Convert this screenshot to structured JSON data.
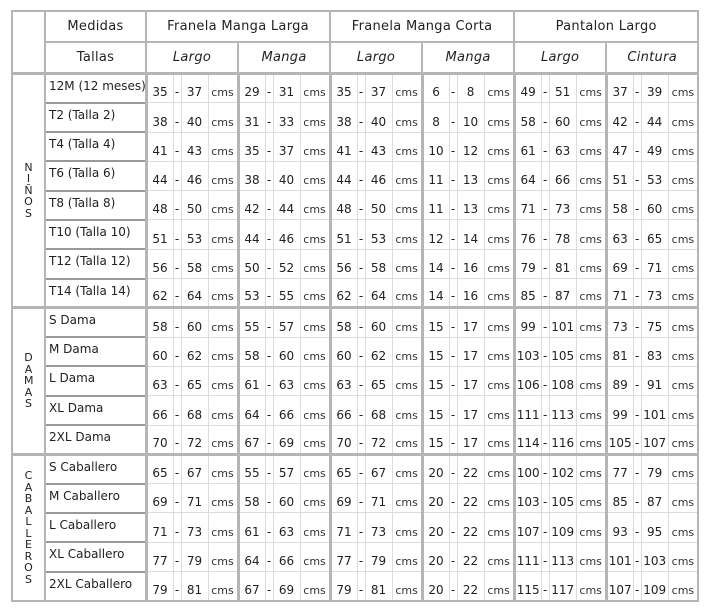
{
  "header": {
    "medidas": "Medidas",
    "tallas": "Tallas",
    "garments": [
      {
        "label": "Franela Manga Larga",
        "subs": [
          "Largo",
          "Manga"
        ]
      },
      {
        "label": "Franela Manga Corta",
        "subs": [
          "Largo",
          "Manga"
        ]
      },
      {
        "label": "Pantalon Largo",
        "subs": [
          "Largo",
          "Cintura"
        ]
      }
    ]
  },
  "unit": "cms",
  "separator": "-",
  "colors": {
    "border_thick": "#b5b5b5",
    "border_thin": "#dcdcdc"
  },
  "groups": [
    {
      "label": "NIÑOS",
      "rows": [
        {
          "size": "12M (12 meses)",
          "values": [
            [
              35,
              37
            ],
            [
              29,
              31
            ],
            [
              35,
              37
            ],
            [
              6,
              8
            ],
            [
              49,
              51
            ],
            [
              37,
              39
            ]
          ]
        },
        {
          "size": "T2 (Talla 2)",
          "values": [
            [
              38,
              40
            ],
            [
              31,
              33
            ],
            [
              38,
              40
            ],
            [
              8,
              10
            ],
            [
              58,
              60
            ],
            [
              42,
              44
            ]
          ]
        },
        {
          "size": "T4 (Talla 4)",
          "values": [
            [
              41,
              43
            ],
            [
              35,
              37
            ],
            [
              41,
              43
            ],
            [
              10,
              12
            ],
            [
              61,
              63
            ],
            [
              47,
              49
            ]
          ]
        },
        {
          "size": "T6 (Talla 6)",
          "values": [
            [
              44,
              46
            ],
            [
              38,
              40
            ],
            [
              44,
              46
            ],
            [
              11,
              13
            ],
            [
              64,
              66
            ],
            [
              51,
              53
            ]
          ]
        },
        {
          "size": "T8  (Talla 8)",
          "values": [
            [
              48,
              50
            ],
            [
              42,
              44
            ],
            [
              48,
              50
            ],
            [
              11,
              13
            ],
            [
              71,
              73
            ],
            [
              58,
              60
            ]
          ]
        },
        {
          "size": "T10 (Talla 10)",
          "values": [
            [
              51,
              53
            ],
            [
              44,
              46
            ],
            [
              51,
              53
            ],
            [
              12,
              14
            ],
            [
              76,
              78
            ],
            [
              63,
              65
            ]
          ]
        },
        {
          "size": "T12 (Talla 12)",
          "values": [
            [
              56,
              58
            ],
            [
              50,
              52
            ],
            [
              56,
              58
            ],
            [
              14,
              16
            ],
            [
              79,
              81
            ],
            [
              69,
              71
            ]
          ]
        },
        {
          "size": "T14 (Talla 14)",
          "values": [
            [
              62,
              64
            ],
            [
              53,
              55
            ],
            [
              62,
              64
            ],
            [
              14,
              16
            ],
            [
              85,
              87
            ],
            [
              71,
              73
            ]
          ]
        }
      ]
    },
    {
      "label": "DAMAS",
      "rows": [
        {
          "size": "S Dama",
          "values": [
            [
              58,
              60
            ],
            [
              55,
              57
            ],
            [
              58,
              60
            ],
            [
              15,
              17
            ],
            [
              99,
              101
            ],
            [
              73,
              75
            ]
          ]
        },
        {
          "size": "M Dama",
          "values": [
            [
              60,
              62
            ],
            [
              58,
              60
            ],
            [
              60,
              62
            ],
            [
              15,
              17
            ],
            [
              103,
              105
            ],
            [
              81,
              83
            ]
          ]
        },
        {
          "size": "L Dama",
          "values": [
            [
              63,
              65
            ],
            [
              61,
              63
            ],
            [
              63,
              65
            ],
            [
              15,
              17
            ],
            [
              106,
              108
            ],
            [
              89,
              91
            ]
          ]
        },
        {
          "size": "XL Dama",
          "values": [
            [
              66,
              68
            ],
            [
              64,
              66
            ],
            [
              66,
              68
            ],
            [
              15,
              17
            ],
            [
              111,
              113
            ],
            [
              99,
              101
            ]
          ]
        },
        {
          "size": "2XL Dama",
          "values": [
            [
              70,
              72
            ],
            [
              67,
              69
            ],
            [
              70,
              72
            ],
            [
              15,
              17
            ],
            [
              114,
              116
            ],
            [
              105,
              107
            ]
          ]
        }
      ]
    },
    {
      "label": "CABALLEROS",
      "rows": [
        {
          "size": "S Caballero",
          "values": [
            [
              65,
              67
            ],
            [
              55,
              57
            ],
            [
              65,
              67
            ],
            [
              20,
              22
            ],
            [
              100,
              102
            ],
            [
              77,
              79
            ]
          ]
        },
        {
          "size": "M Caballero",
          "values": [
            [
              69,
              71
            ],
            [
              58,
              60
            ],
            [
              69,
              71
            ],
            [
              20,
              22
            ],
            [
              103,
              105
            ],
            [
              85,
              87
            ]
          ]
        },
        {
          "size": "L Caballero",
          "values": [
            [
              71,
              73
            ],
            [
              61,
              63
            ],
            [
              71,
              73
            ],
            [
              20,
              22
            ],
            [
              107,
              109
            ],
            [
              93,
              95
            ]
          ]
        },
        {
          "size": "XL Caballero",
          "values": [
            [
              77,
              79
            ],
            [
              64,
              66
            ],
            [
              77,
              79
            ],
            [
              20,
              22
            ],
            [
              111,
              113
            ],
            [
              101,
              103
            ]
          ]
        },
        {
          "size": "2XL Caballero",
          "values": [
            [
              79,
              81
            ],
            [
              67,
              69
            ],
            [
              79,
              81
            ],
            [
              20,
              22
            ],
            [
              115,
              117
            ],
            [
              107,
              109
            ]
          ]
        }
      ]
    }
  ]
}
